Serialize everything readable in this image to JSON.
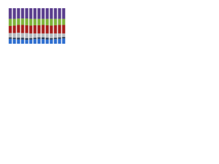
{
  "chart_data": {
    "type": "stacked-bar",
    "categories": [
      null,
      null,
      null,
      null,
      null,
      null,
      null,
      null,
      null,
      null,
      null,
      null,
      null,
      null
    ],
    "series": [
      {
        "color": "#2f6fd0",
        "values": [
          14,
          13,
          12,
          12,
          11,
          12,
          13,
          14,
          13,
          12,
          12,
          13,
          14,
          15
        ]
      },
      {
        "color": "#2b3a55",
        "values": [
          4,
          4,
          5,
          5,
          5,
          4,
          4,
          4,
          5,
          5,
          4,
          4,
          4,
          4
        ]
      },
      {
        "color": "#b4b8bd",
        "values": [
          12,
          13,
          14,
          13,
          14,
          13,
          12,
          11,
          11,
          12,
          13,
          12,
          11,
          10
        ]
      },
      {
        "color": "#a8201f",
        "values": [
          20,
          21,
          22,
          23,
          22,
          22,
          23,
          23,
          24,
          23,
          22,
          23,
          24,
          24
        ]
      },
      {
        "color": "#7fb33a",
        "values": [
          20,
          19,
          18,
          18,
          19,
          19,
          18,
          18,
          17,
          18,
          19,
          18,
          17,
          17
        ]
      },
      {
        "color": "#5b3f8e",
        "values": [
          30,
          30,
          29,
          29,
          29,
          30,
          30,
          30,
          30,
          30,
          30,
          30,
          30,
          30
        ]
      }
    ],
    "ylim": [
      0,
      100
    ]
  }
}
